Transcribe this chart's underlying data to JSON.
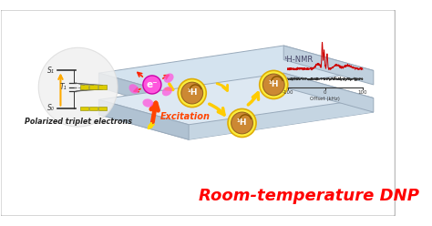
{
  "title": "Room-temperature DNP",
  "title_color": "#ff0000",
  "title_fontsize": 13,
  "bg_color": "#ffffff",
  "border_color": "#bbbbbb",
  "fig_width": 4.74,
  "fig_height": 2.48,
  "dpi": 100,
  "nmr_label": "¹H-NMR",
  "offset_label": "Offset (kHz)",
  "excitation_label": "Excitation",
  "polarized_label": "Polarized triplet electrons",
  "s0_label": "S₀",
  "s1_label": "S₁",
  "t1_label": "T₁",
  "h1_label": "¹H",
  "electron_label": "e⁻",
  "slab_top_color": "#d4e3ef",
  "slab_face_color": "#c0d0de",
  "slab_side_color": "#b0c2d2",
  "slab_inner_color": "#a8bfcf",
  "arrow_excitation_color": "#ff5500",
  "arrow_yellow_color": "#ffcc00",
  "h_glow_color": "#ffee44",
  "h_body_color": "#cc8833",
  "electron_color": "#ff44cc",
  "magenta_blob_color": "#ff44cc",
  "energy_color": "#888800"
}
